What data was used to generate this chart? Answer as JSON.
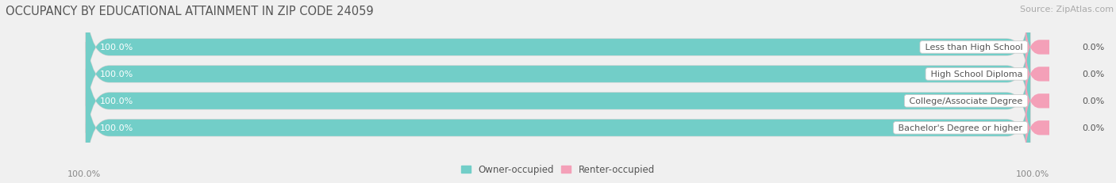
{
  "title": "OCCUPANCY BY EDUCATIONAL ATTAINMENT IN ZIP CODE 24059",
  "source": "Source: ZipAtlas.com",
  "categories": [
    "Less than High School",
    "High School Diploma",
    "College/Associate Degree",
    "Bachelor's Degree or higher"
  ],
  "owner_pct": [
    100.0,
    100.0,
    100.0,
    100.0
  ],
  "renter_pct": [
    0.0,
    0.0,
    0.0,
    0.0
  ],
  "owner_color": "#72cec8",
  "renter_color": "#f4a0b8",
  "bg_color": "#f0f0f0",
  "bar_track_color": "#e0e0e0",
  "bar_track_edge": "#d0d0d0",
  "title_fontsize": 10.5,
  "source_fontsize": 8,
  "label_fontsize": 8,
  "cat_fontsize": 8,
  "tick_fontsize": 8,
  "legend_fontsize": 8.5,
  "bar_height": 0.62,
  "owner_label_color": "#ffffff",
  "renter_label_color": "#555555",
  "cat_label_color": "#555555",
  "bottom_tick_color": "#888888",
  "title_color": "#555555",
  "source_color": "#aaaaaa"
}
